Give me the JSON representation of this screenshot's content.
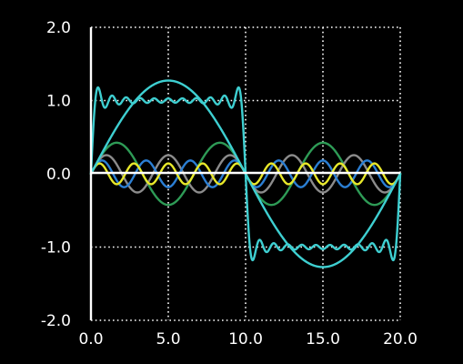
{
  "chart_data": {
    "type": "line",
    "title": "",
    "xlabel": "",
    "ylabel": "",
    "xlim": [
      0,
      20
    ],
    "ylim": [
      -2,
      2
    ],
    "x_ticks": [
      "0.0",
      "5.0",
      "10.0",
      "15.0",
      "20.0"
    ],
    "y_ticks": [
      "2.0",
      "1.0",
      "0.0",
      "-1.0",
      "-2.0"
    ],
    "grid": true,
    "background": "#000000",
    "series": [
      {
        "color": "#3ecfd1",
        "kind": "square-wave partial sum (1 term)",
        "x": [
          0,
          2.5,
          5,
          7.5,
          10,
          12.5,
          15,
          17.5,
          20
        ],
        "y": [
          0,
          0.9,
          1.27,
          0.9,
          0,
          -0.9,
          -1.27,
          -0.9,
          0
        ]
      },
      {
        "color": "#3ecfd1",
        "kind": "square-wave partial sum (many terms)",
        "x": [
          0,
          0.3,
          0.8,
          2,
          3.5,
          5,
          6.5,
          8,
          9.2,
          9.7,
          10,
          10.3,
          10.8,
          12,
          13.5,
          15,
          16.5,
          18,
          19.2,
          19.7,
          20
        ],
        "y": [
          0.25,
          0.85,
          1.12,
          0.95,
          1.05,
          0.95,
          1.05,
          0.95,
          1.12,
          0.85,
          0,
          -0.85,
          -1.12,
          -0.95,
          -1.05,
          -0.95,
          -1.05,
          -0.95,
          -1.12,
          -0.85,
          -0.25
        ]
      },
      {
        "color": "#2e9b56",
        "kind": "harmonic 3",
        "x": [
          0,
          1.67,
          3.33,
          5,
          6.67,
          8.33,
          10
        ],
        "y": [
          0,
          0.42,
          0,
          -0.42,
          0,
          0.42,
          0
        ]
      },
      {
        "color": "#8c8c8c",
        "kind": "harmonic 5",
        "x": [
          0,
          1,
          2,
          3,
          4,
          5
        ],
        "y": [
          0,
          0.25,
          0,
          -0.25,
          0,
          0.25
        ]
      },
      {
        "color": "#2b7fd4",
        "kind": "harmonic 7",
        "x": [
          0,
          0.71,
          1.43,
          2.14
        ],
        "y": [
          0,
          0.18,
          0,
          -0.18
        ]
      },
      {
        "color": "#e8e82a",
        "kind": "harmonic 9",
        "x": [
          0,
          0.56,
          1.11,
          1.67
        ],
        "y": [
          0,
          0.14,
          0,
          -0.14
        ]
      }
    ],
    "harmonics": [
      {
        "n": 3,
        "amplitude": 0.4244,
        "color": "#2e9b56"
      },
      {
        "n": 5,
        "amplitude": 0.2546,
        "color": "#8c8c8c"
      },
      {
        "n": 7,
        "amplitude": 0.1819,
        "color": "#2b7fd4"
      },
      {
        "n": 9,
        "amplitude": 0.1415,
        "color": "#e8e82a"
      }
    ],
    "fundamental": {
      "n": 1,
      "amplitude": 1.2732,
      "color": "#3ecfd1"
    },
    "partial_sum": {
      "terms": 11,
      "color": "#3ecfd1"
    },
    "period": 20
  }
}
